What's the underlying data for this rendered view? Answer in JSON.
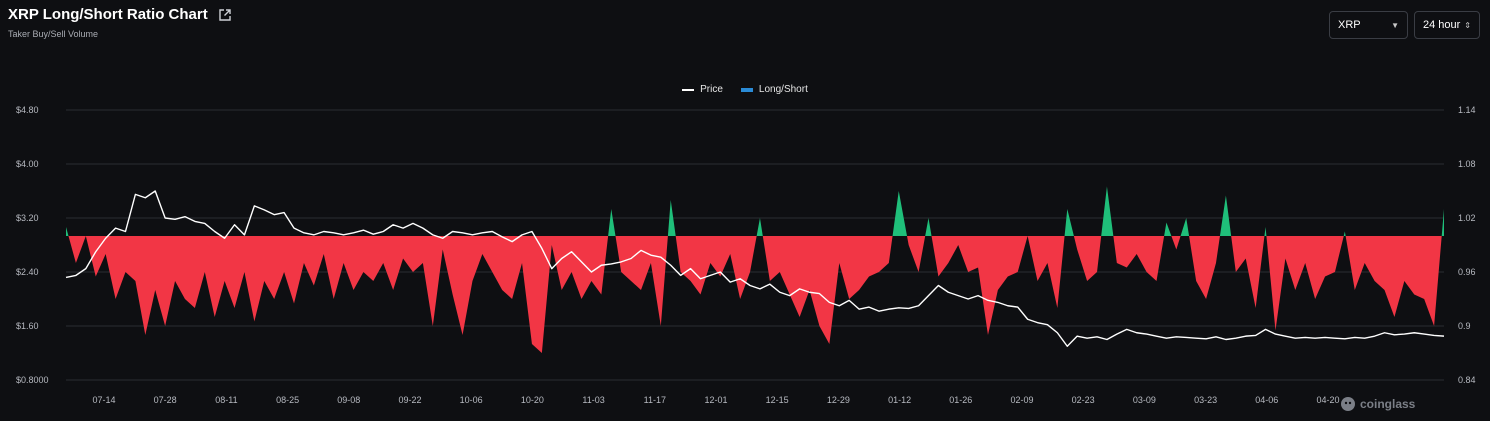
{
  "header": {
    "title": "XRP Long/Short Ratio Chart",
    "subtitle": "Taker Buy/Sell Volume",
    "external_link_icon": "external-link-icon"
  },
  "controls": {
    "symbol": "XRP",
    "timeframe": "24 hour"
  },
  "legend": {
    "price": "Price",
    "long_short": "Long/Short"
  },
  "watermark": "coinglass",
  "colors": {
    "background": "#0e0f12",
    "positive": "#1fbf7a",
    "negative": "#f23645",
    "price_line": "#ffffff",
    "legend_long_short": "#2a8bd6"
  },
  "chart_data": {
    "type": "area",
    "title": "XRP Long/Short Ratio Chart",
    "subtitle": "Taker Buy/Sell Volume",
    "legend_position": "top-center",
    "grid": true,
    "x_tick_labels": [
      "07-14",
      "07-28",
      "08-11",
      "08-25",
      "09-08",
      "09-22",
      "10-06",
      "10-20",
      "11-03",
      "11-17",
      "12-01",
      "12-15",
      "12-29",
      "01-12",
      "01-26",
      "02-09",
      "02-23",
      "03-09",
      "03-23",
      "04-06",
      "04-20"
    ],
    "y_left": {
      "label": "",
      "ticks": [
        "$0.8000",
        "$1.60",
        "$2.40",
        "$3.20",
        "$4.00",
        "$4.80"
      ],
      "range": [
        0.8,
        4.8
      ]
    },
    "y_right": {
      "label": "",
      "ticks": [
        "0.84",
        "0.9",
        "0.96",
        "1.02",
        "1.08",
        "1.14"
      ],
      "range": [
        0.84,
        1.14
      ]
    },
    "baseline": 1.0,
    "series": [
      {
        "name": "Price",
        "axis": "left",
        "type": "line",
        "points": [
          [
            0,
            2.32
          ],
          [
            1,
            2.35
          ],
          [
            2,
            2.45
          ],
          [
            3,
            2.7
          ],
          [
            4,
            2.9
          ],
          [
            5,
            3.05
          ],
          [
            6,
            3.0
          ],
          [
            7,
            3.55
          ],
          [
            8,
            3.5
          ],
          [
            9,
            3.6
          ],
          [
            10,
            3.2
          ],
          [
            11,
            3.18
          ],
          [
            12,
            3.22
          ],
          [
            13,
            3.15
          ],
          [
            14,
            3.12
          ],
          [
            15,
            3.0
          ],
          [
            16,
            2.9
          ],
          [
            17,
            3.1
          ],
          [
            18,
            2.95
          ],
          [
            19,
            3.38
          ],
          [
            20,
            3.32
          ],
          [
            21,
            3.25
          ],
          [
            22,
            3.28
          ],
          [
            23,
            3.05
          ],
          [
            24,
            2.98
          ],
          [
            25,
            2.95
          ],
          [
            26,
            3.0
          ],
          [
            27,
            2.98
          ],
          [
            28,
            2.95
          ],
          [
            29,
            2.98
          ],
          [
            30,
            3.02
          ],
          [
            31,
            2.96
          ],
          [
            32,
            3.0
          ],
          [
            33,
            3.1
          ],
          [
            34,
            3.05
          ],
          [
            35,
            3.12
          ],
          [
            36,
            3.05
          ],
          [
            37,
            2.95
          ],
          [
            38,
            2.9
          ],
          [
            39,
            3.0
          ],
          [
            40,
            2.98
          ],
          [
            41,
            2.95
          ],
          [
            42,
            2.98
          ],
          [
            43,
            3.0
          ],
          [
            44,
            2.92
          ],
          [
            45,
            2.85
          ],
          [
            46,
            2.95
          ],
          [
            47,
            3.0
          ],
          [
            48,
            2.75
          ],
          [
            49,
            2.45
          ],
          [
            50,
            2.6
          ],
          [
            51,
            2.7
          ],
          [
            52,
            2.55
          ],
          [
            53,
            2.4
          ],
          [
            54,
            2.5
          ],
          [
            55,
            2.52
          ],
          [
            56,
            2.55
          ],
          [
            57,
            2.6
          ],
          [
            58,
            2.72
          ],
          [
            59,
            2.65
          ],
          [
            60,
            2.62
          ],
          [
            61,
            2.5
          ],
          [
            62,
            2.35
          ],
          [
            63,
            2.45
          ],
          [
            64,
            2.3
          ],
          [
            65,
            2.35
          ],
          [
            66,
            2.4
          ],
          [
            67,
            2.25
          ],
          [
            68,
            2.3
          ],
          [
            69,
            2.2
          ],
          [
            70,
            2.15
          ],
          [
            71,
            2.22
          ],
          [
            72,
            2.1
          ],
          [
            73,
            2.05
          ],
          [
            74,
            2.15
          ],
          [
            75,
            2.1
          ],
          [
            76,
            2.08
          ],
          [
            77,
            1.95
          ],
          [
            78,
            1.9
          ],
          [
            79,
            1.98
          ],
          [
            80,
            1.85
          ],
          [
            81,
            1.88
          ],
          [
            82,
            1.82
          ],
          [
            83,
            1.85
          ],
          [
            84,
            1.87
          ],
          [
            85,
            1.86
          ],
          [
            86,
            1.9
          ],
          [
            87,
            2.05
          ],
          [
            88,
            2.2
          ],
          [
            89,
            2.1
          ],
          [
            90,
            2.05
          ],
          [
            91,
            2.0
          ],
          [
            92,
            2.05
          ],
          [
            93,
            1.98
          ],
          [
            94,
            1.95
          ],
          [
            95,
            1.9
          ],
          [
            96,
            1.88
          ],
          [
            97,
            1.7
          ],
          [
            98,
            1.65
          ],
          [
            99,
            1.62
          ],
          [
            100,
            1.5
          ],
          [
            101,
            1.3
          ],
          [
            102,
            1.45
          ],
          [
            103,
            1.42
          ],
          [
            104,
            1.44
          ],
          [
            105,
            1.4
          ],
          [
            106,
            1.48
          ],
          [
            107,
            1.55
          ],
          [
            108,
            1.5
          ],
          [
            109,
            1.48
          ],
          [
            110,
            1.45
          ],
          [
            111,
            1.42
          ],
          [
            112,
            1.44
          ],
          [
            113,
            1.43
          ],
          [
            114,
            1.42
          ],
          [
            115,
            1.41
          ],
          [
            116,
            1.44
          ],
          [
            117,
            1.4
          ],
          [
            118,
            1.42
          ],
          [
            119,
            1.45
          ],
          [
            120,
            1.46
          ],
          [
            121,
            1.55
          ],
          [
            122,
            1.48
          ],
          [
            123,
            1.45
          ],
          [
            124,
            1.42
          ],
          [
            125,
            1.43
          ],
          [
            126,
            1.42
          ],
          [
            127,
            1.43
          ],
          [
            128,
            1.42
          ],
          [
            129,
            1.41
          ],
          [
            130,
            1.43
          ],
          [
            131,
            1.42
          ],
          [
            132,
            1.45
          ],
          [
            133,
            1.5
          ],
          [
            134,
            1.47
          ],
          [
            135,
            1.48
          ],
          [
            136,
            1.5
          ],
          [
            137,
            1.48
          ],
          [
            138,
            1.46
          ],
          [
            139,
            1.45
          ]
        ]
      },
      {
        "name": "Long/Short",
        "axis": "right",
        "type": "area",
        "points": [
          [
            0,
            1.01
          ],
          [
            1,
            0.97
          ],
          [
            2,
            1.0
          ],
          [
            3,
            0.955
          ],
          [
            4,
            0.98
          ],
          [
            5,
            0.93
          ],
          [
            6,
            0.96
          ],
          [
            7,
            0.95
          ],
          [
            8,
            0.89
          ],
          [
            9,
            0.94
          ],
          [
            10,
            0.9
          ],
          [
            11,
            0.95
          ],
          [
            12,
            0.93
          ],
          [
            13,
            0.92
          ],
          [
            14,
            0.96
          ],
          [
            15,
            0.91
          ],
          [
            16,
            0.95
          ],
          [
            17,
            0.92
          ],
          [
            18,
            0.96
          ],
          [
            19,
            0.905
          ],
          [
            20,
            0.95
          ],
          [
            21,
            0.93
          ],
          [
            22,
            0.96
          ],
          [
            23,
            0.925
          ],
          [
            24,
            0.97
          ],
          [
            25,
            0.945
          ],
          [
            26,
            0.98
          ],
          [
            27,
            0.93
          ],
          [
            28,
            0.97
          ],
          [
            29,
            0.94
          ],
          [
            30,
            0.96
          ],
          [
            31,
            0.95
          ],
          [
            32,
            0.97
          ],
          [
            33,
            0.94
          ],
          [
            34,
            0.975
          ],
          [
            35,
            0.96
          ],
          [
            36,
            0.97
          ],
          [
            37,
            0.9
          ],
          [
            38,
            0.985
          ],
          [
            39,
            0.935
          ],
          [
            40,
            0.89
          ],
          [
            41,
            0.95
          ],
          [
            42,
            0.98
          ],
          [
            43,
            0.96
          ],
          [
            44,
            0.94
          ],
          [
            45,
            0.93
          ],
          [
            46,
            0.97
          ],
          [
            47,
            0.88
          ],
          [
            48,
            0.87
          ],
          [
            49,
            0.99
          ],
          [
            50,
            0.94
          ],
          [
            51,
            0.96
          ],
          [
            52,
            0.93
          ],
          [
            53,
            0.95
          ],
          [
            54,
            0.935
          ],
          [
            55,
            1.03
          ],
          [
            56,
            0.96
          ],
          [
            57,
            0.95
          ],
          [
            58,
            0.94
          ],
          [
            59,
            0.97
          ],
          [
            60,
            0.9
          ],
          [
            61,
            1.04
          ],
          [
            62,
            0.96
          ],
          [
            63,
            0.95
          ],
          [
            64,
            0.935
          ],
          [
            65,
            0.97
          ],
          [
            66,
            0.955
          ],
          [
            67,
            0.98
          ],
          [
            68,
            0.93
          ],
          [
            69,
            0.96
          ],
          [
            70,
            1.02
          ],
          [
            71,
            0.95
          ],
          [
            72,
            0.96
          ],
          [
            73,
            0.935
          ],
          [
            74,
            0.91
          ],
          [
            75,
            0.94
          ],
          [
            76,
            0.9
          ],
          [
            77,
            0.88
          ],
          [
            78,
            0.97
          ],
          [
            79,
            0.93
          ],
          [
            80,
            0.94
          ],
          [
            81,
            0.955
          ],
          [
            82,
            0.96
          ],
          [
            83,
            0.97
          ],
          [
            84,
            1.05
          ],
          [
            85,
            0.99
          ],
          [
            86,
            0.96
          ],
          [
            87,
            1.02
          ],
          [
            88,
            0.955
          ],
          [
            89,
            0.97
          ],
          [
            90,
            0.99
          ],
          [
            91,
            0.96
          ],
          [
            92,
            0.965
          ],
          [
            93,
            0.89
          ],
          [
            94,
            0.94
          ],
          [
            95,
            0.955
          ],
          [
            96,
            0.96
          ],
          [
            97,
            1.0
          ],
          [
            98,
            0.95
          ],
          [
            99,
            0.97
          ],
          [
            100,
            0.92
          ],
          [
            101,
            1.03
          ],
          [
            102,
            0.985
          ],
          [
            103,
            0.95
          ],
          [
            104,
            0.96
          ],
          [
            105,
            1.055
          ],
          [
            106,
            0.97
          ],
          [
            107,
            0.965
          ],
          [
            108,
            0.98
          ],
          [
            109,
            0.96
          ],
          [
            110,
            0.95
          ],
          [
            111,
            1.015
          ],
          [
            112,
            0.985
          ],
          [
            113,
            1.02
          ],
          [
            114,
            0.95
          ],
          [
            115,
            0.93
          ],
          [
            116,
            0.97
          ],
          [
            117,
            1.045
          ],
          [
            118,
            0.96
          ],
          [
            119,
            0.975
          ],
          [
            120,
            0.92
          ],
          [
            121,
            1.01
          ],
          [
            122,
            0.895
          ],
          [
            123,
            0.975
          ],
          [
            124,
            0.94
          ],
          [
            125,
            0.97
          ],
          [
            126,
            0.93
          ],
          [
            127,
            0.955
          ],
          [
            128,
            0.96
          ],
          [
            129,
            1.005
          ],
          [
            130,
            0.94
          ],
          [
            131,
            0.97
          ],
          [
            132,
            0.95
          ],
          [
            133,
            0.94
          ],
          [
            134,
            0.91
          ],
          [
            135,
            0.95
          ],
          [
            136,
            0.935
          ],
          [
            137,
            0.93
          ],
          [
            138,
            0.9
          ],
          [
            139,
            1.03
          ]
        ]
      }
    ]
  }
}
